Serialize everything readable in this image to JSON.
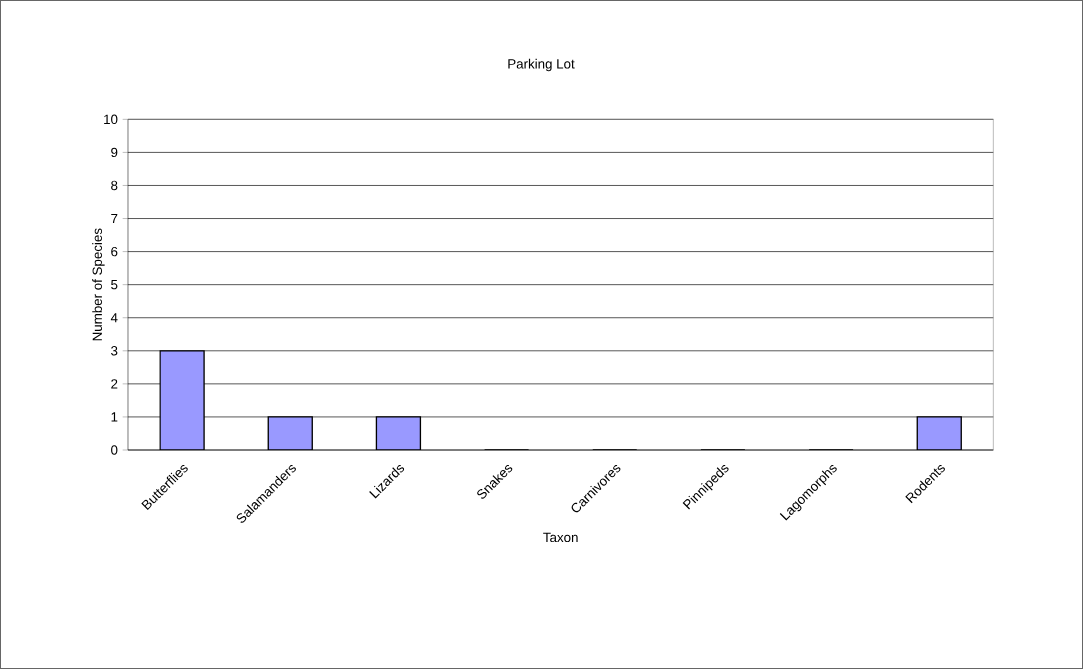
{
  "chart_data": {
    "type": "bar",
    "title": "Parking Lot",
    "xlabel": "Taxon",
    "ylabel": "Number of Species",
    "categories": [
      "Butterflies",
      "Salamanders",
      "Lizards",
      "Snakes",
      "Carnivores",
      "Pinnipeds",
      "Lagomorphs",
      "Rodents"
    ],
    "values": [
      3,
      1,
      1,
      0,
      0,
      0,
      0,
      1
    ],
    "color": "#9999ff",
    "ylim": [
      0,
      10
    ],
    "yticks": [
      0,
      1,
      2,
      3,
      4,
      5,
      6,
      7,
      8,
      9,
      10
    ],
    "grid": "y"
  }
}
